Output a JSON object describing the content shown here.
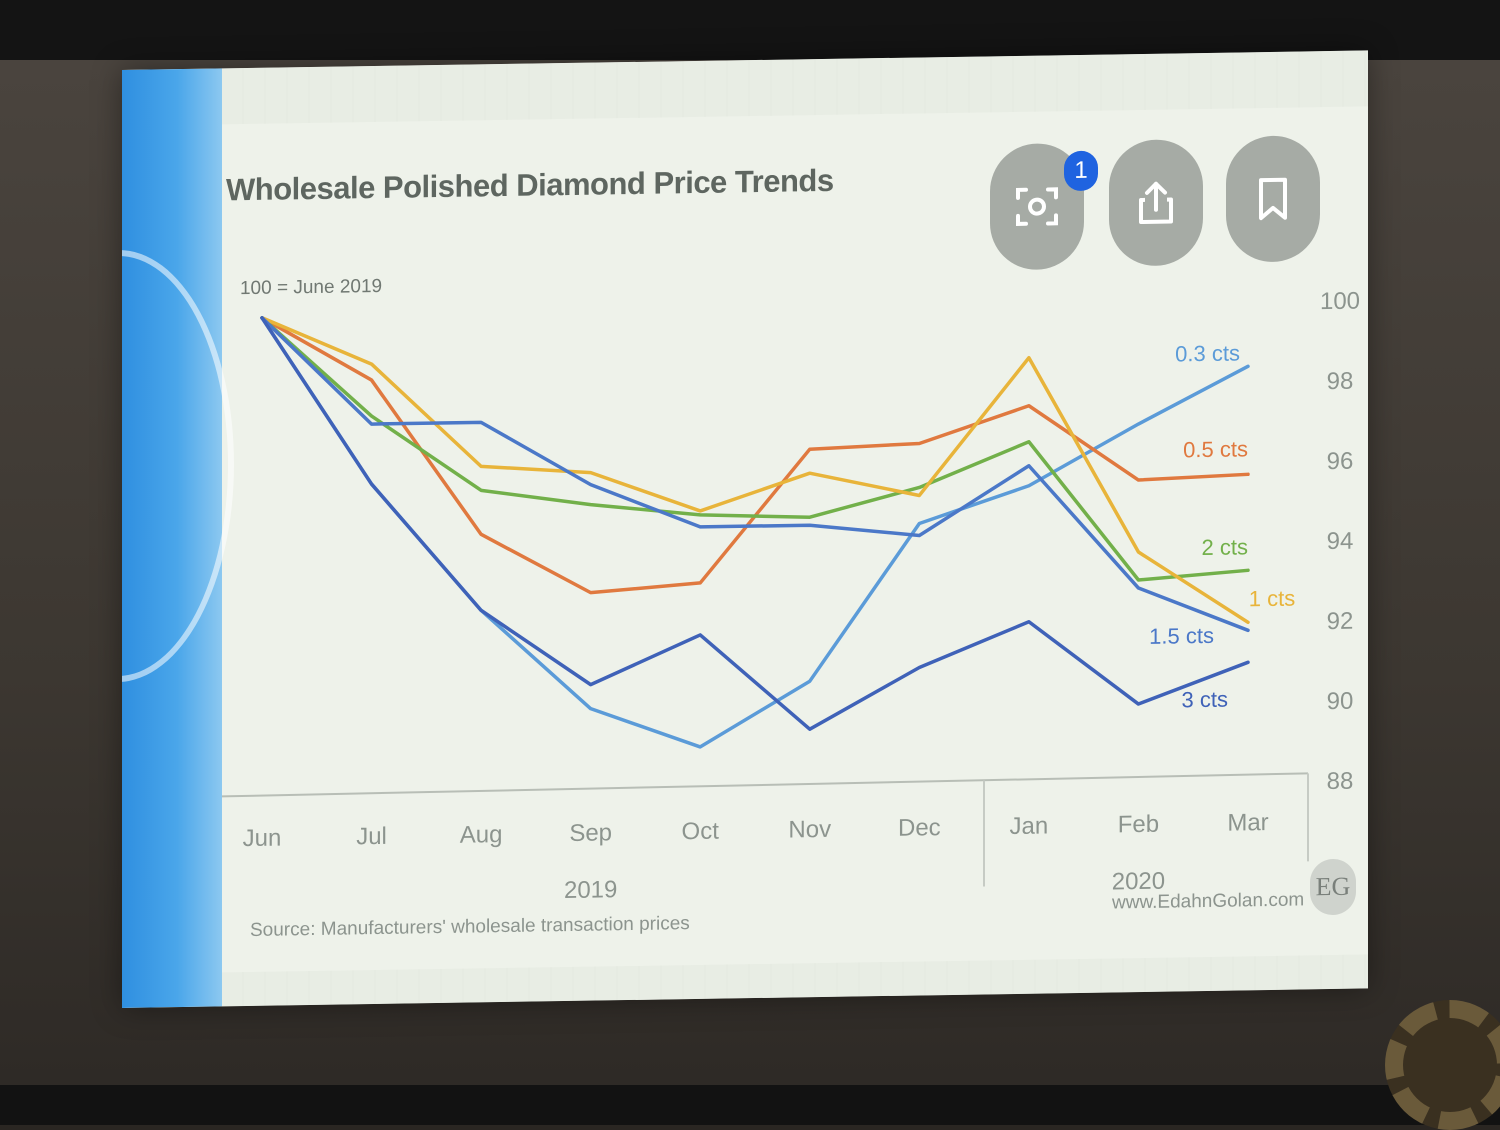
{
  "slide": {
    "title": "Wholesale Polished Diamond Price Trends",
    "source_note": "Source: Manufacturers' wholesale transaction prices",
    "website": "www.EdahnGolan.com",
    "logo_text": "EG",
    "overlay_badge_count": "1"
  },
  "colors": {
    "0.3 cts": "#5b9bd8",
    "0.5 cts": "#e0793f",
    "1 cts": "#e8b43a",
    "2 cts": "#72b04a",
    "1.5 cts": "#4b78c8",
    "3 cts": "#3f62b8"
  },
  "chart_data": {
    "type": "line",
    "title": "Wholesale Polished Diamond Price Trends",
    "index_note": "100 = June 2019",
    "categories": [
      "Jun",
      "Jul",
      "Aug",
      "Sep",
      "Oct",
      "Nov",
      "Dec",
      "Jan",
      "Feb",
      "Mar"
    ],
    "year_groups": [
      {
        "label": "2019",
        "from": "Jun",
        "to": "Dec"
      },
      {
        "label": "2020",
        "from": "Jan",
        "to": "Mar"
      }
    ],
    "ylim": [
      88,
      100
    ],
    "yticks": [
      88,
      90,
      92,
      94,
      96,
      98,
      100
    ],
    "y_axis_side": "right",
    "grid": false,
    "legend": "inline labels at line ends",
    "series": [
      {
        "name": "0.3 cts",
        "values": [
          100,
          95.8,
          92.6,
          90.1,
          89.1,
          90.7,
          94.6,
          95.5,
          97.0,
          98.4
        ]
      },
      {
        "name": "0.5 cts",
        "values": [
          100,
          98.4,
          94.5,
          93.0,
          93.2,
          96.5,
          96.6,
          97.5,
          95.6,
          95.7
        ]
      },
      {
        "name": "2 cts",
        "values": [
          100,
          97.5,
          95.6,
          95.2,
          94.9,
          94.8,
          95.5,
          96.6,
          93.1,
          93.3
        ]
      },
      {
        "name": "1 cts",
        "values": [
          100,
          98.8,
          96.2,
          96.0,
          95.0,
          95.9,
          95.3,
          98.7,
          93.8,
          92.0
        ]
      },
      {
        "name": "1.5 cts",
        "values": [
          100,
          97.3,
          97.3,
          95.7,
          94.6,
          94.6,
          94.3,
          96.0,
          92.9,
          91.8
        ]
      },
      {
        "name": "3 cts",
        "values": [
          100,
          95.8,
          92.6,
          90.7,
          91.9,
          89.5,
          91.0,
          92.1,
          90.0,
          91.0
        ]
      }
    ]
  }
}
